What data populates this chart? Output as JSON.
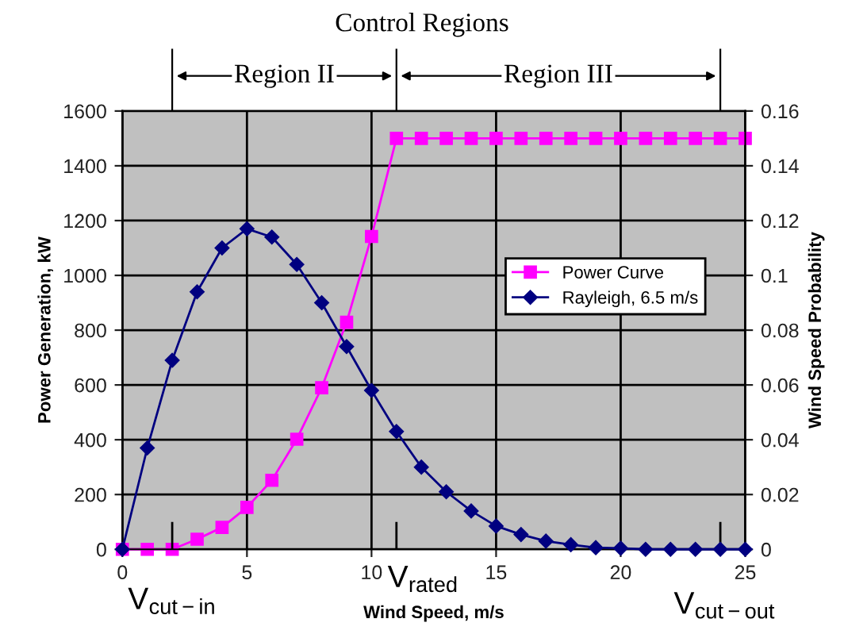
{
  "chart_data": {
    "type": "line",
    "title": "Control Regions",
    "xlabel": "Wind Speed, m/s",
    "ylabel": "Power Generation, kW",
    "y2label": "Wind Speed Probability",
    "x": [
      0,
      1,
      2,
      3,
      4,
      5,
      6,
      7,
      8,
      9,
      10,
      11,
      12,
      13,
      14,
      15,
      16,
      17,
      18,
      19,
      20,
      21,
      22,
      23,
      24,
      25
    ],
    "series": [
      {
        "name": "Power Curve",
        "color": "#ff00ff",
        "marker": "square",
        "values": [
          0,
          0,
          0,
          37,
          80,
          153,
          252,
          402,
          590,
          829,
          1142,
          1500,
          1500,
          1500,
          1500,
          1500,
          1500,
          1500,
          1500,
          1500,
          1500,
          1500,
          1500,
          1500,
          1500,
          1500
        ]
      },
      {
        "name": "Rayleigh, 6.5 m/s",
        "color": "#000080",
        "marker": "diamond",
        "axis": "y2",
        "values": [
          0,
          0.037,
          0.069,
          0.094,
          0.11,
          0.117,
          0.114,
          0.104,
          0.09,
          0.074,
          0.058,
          0.043,
          0.03,
          0.021,
          0.014,
          0.0085,
          0.0054,
          0.003,
          0.0017,
          0.0006,
          0.0004,
          0,
          0,
          0,
          0,
          0
        ]
      }
    ],
    "annotations": [
      "Region II",
      "Region III"
    ],
    "ref_lines": [
      {
        "axis": "x",
        "value": 2,
        "label": "V$_{cut−in}$"
      },
      {
        "axis": "x",
        "value": 11,
        "label": "V$_{rated}$"
      },
      {
        "axis": "x",
        "value": 24,
        "label": "V$_{cut−out}$"
      }
    ],
    "xlim": [
      0,
      25
    ],
    "xticks": [
      0,
      5,
      10,
      15,
      20,
      25
    ],
    "ylim": [
      0,
      1600
    ],
    "yticks": [
      0,
      200,
      400,
      600,
      800,
      1000,
      1200,
      1400,
      1600
    ],
    "y2lim": [
      0,
      0.16
    ],
    "y2ticks": [
      0,
      0.02,
      0.04,
      0.06,
      0.08,
      0.1,
      0.12,
      0.14,
      0.16
    ],
    "grid": true,
    "legend": "right",
    "line_style": "solid"
  }
}
